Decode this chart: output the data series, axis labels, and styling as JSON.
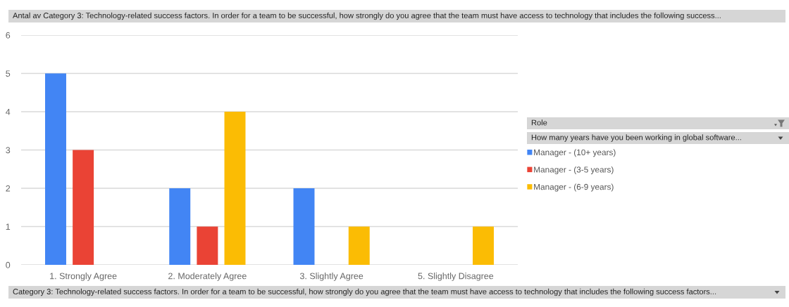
{
  "chart_data": {
    "type": "bar",
    "title": "Antal av Category 3: Technology-related success factors. In order for a team to be successful, how strongly do you agree that the team must have access to technology that includes the following success...",
    "xlabel": "Category 3: Technology-related success factors. In order for a team to be successful, how strongly do you agree that the team must have access to technology that includes the following success factors...",
    "legend_title": "Role",
    "annotations": [
      "How many years have you been working in global software..."
    ],
    "categories": [
      "1. Strongly Agree",
      "2. Moderately Agree",
      "3. Slightly Agree",
      "5. Slightly Disagree"
    ],
    "series": [
      {
        "name": "Manager - (10+ years)",
        "color": "#4285f4",
        "values": [
          5,
          2,
          2,
          null
        ]
      },
      {
        "name": "Manager - (3-5 years)",
        "color": "#ea4335",
        "values": [
          3,
          1,
          null,
          null
        ]
      },
      {
        "name": "Manager - (6-9 years)",
        "color": "#fbbc04",
        "values": [
          null,
          4,
          1,
          1
        ]
      }
    ],
    "ylim": [
      0,
      6
    ],
    "yticks": [
      0,
      1,
      2,
      3,
      4,
      5,
      6
    ],
    "grid": "y",
    "legend": "right"
  }
}
